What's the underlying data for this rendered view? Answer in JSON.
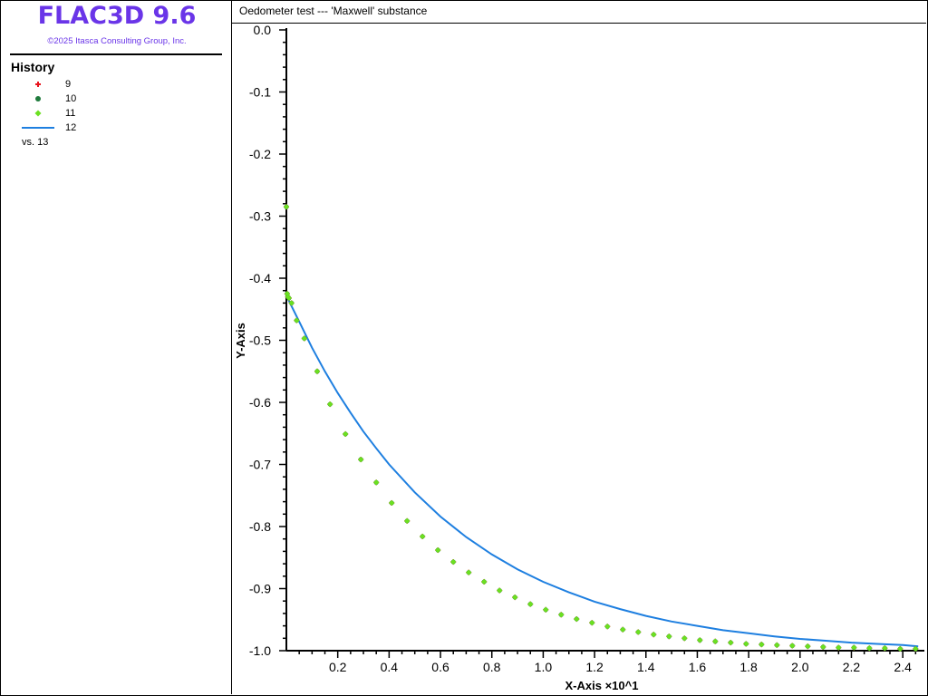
{
  "app": {
    "title": "FLAC3D 9.6",
    "copyright": "©2025 Itasca Consulting Group, Inc."
  },
  "legend": {
    "title": "History",
    "items": [
      {
        "label": "9",
        "symbol": "cross-icon",
        "color": "#e8141e"
      },
      {
        "label": "10",
        "symbol": "circle-icon",
        "color": "#1f7a3c"
      },
      {
        "label": "11",
        "symbol": "diamond-icon",
        "color": "#6be021"
      },
      {
        "label": "12",
        "symbol": "line-icon",
        "color": "#1e7fe0"
      }
    ],
    "vs_label": "vs. 13"
  },
  "plot": {
    "title": "Oedometer test --- 'Maxwell' substance"
  },
  "chart_data": {
    "type": "scatter",
    "title": "Oedometer test --- 'Maxwell' substance",
    "xlabel": "X-Axis ×10^1",
    "ylabel": "Y-Axis",
    "xlim": [
      0.0,
      2.47
    ],
    "ylim": [
      -1.0,
      0.0
    ],
    "xticks": [
      "0.2",
      "0.4",
      "0.6",
      "0.8",
      "1.0",
      "1.2",
      "1.4",
      "1.6",
      "1.8",
      "2.0",
      "2.2",
      "2.4"
    ],
    "yticks": [
      "0.0",
      "-0.1",
      "-0.2",
      "-0.3",
      "-0.4",
      "-0.5",
      "-0.6",
      "-0.7",
      "-0.8",
      "-0.9",
      "-1.0"
    ],
    "grid": false,
    "legend_position": "left-panel",
    "series": [
      {
        "name": "12",
        "type": "line",
        "color": "#1e7fe0",
        "x": [
          0.0,
          0.02,
          0.05,
          0.1,
          0.15,
          0.2,
          0.25,
          0.3,
          0.35,
          0.4,
          0.5,
          0.6,
          0.7,
          0.8,
          0.9,
          1.0,
          1.1,
          1.2,
          1.3,
          1.4,
          1.5,
          1.6,
          1.7,
          1.8,
          1.9,
          2.0,
          2.1,
          2.2,
          2.3,
          2.4,
          2.46
        ],
        "y": [
          -0.428,
          -0.445,
          -0.47,
          -0.512,
          -0.55,
          -0.585,
          -0.617,
          -0.647,
          -0.674,
          -0.7,
          -0.745,
          -0.784,
          -0.817,
          -0.845,
          -0.869,
          -0.889,
          -0.906,
          -0.921,
          -0.933,
          -0.944,
          -0.953,
          -0.96,
          -0.967,
          -0.972,
          -0.977,
          -0.981,
          -0.984,
          -0.987,
          -0.989,
          -0.991,
          -0.993
        ]
      },
      {
        "name": "9",
        "type": "scatter",
        "marker": "cross",
        "color": "#e8141e",
        "x": [
          0.0,
          0.003,
          0.006,
          0.01,
          0.02,
          0.04,
          0.07,
          0.12,
          0.17,
          0.23,
          0.29,
          0.35,
          0.41,
          0.47,
          0.53,
          0.59,
          0.65,
          0.71,
          0.77,
          0.83,
          0.89,
          0.95,
          1.01,
          1.07,
          1.13,
          1.19,
          1.25,
          1.31,
          1.37,
          1.43,
          1.49,
          1.55,
          1.61,
          1.67,
          1.73,
          1.79,
          1.85,
          1.91,
          1.97,
          2.03,
          2.09,
          2.15,
          2.21,
          2.27,
          2.33,
          2.39,
          2.45
        ],
        "y": [
          -0.285,
          -0.425,
          -0.43,
          -0.432,
          -0.44,
          -0.468,
          -0.497,
          -0.55,
          -0.603,
          -0.651,
          -0.692,
          -0.729,
          -0.762,
          -0.791,
          -0.816,
          -0.838,
          -0.857,
          -0.874,
          -0.889,
          -0.903,
          -0.914,
          -0.925,
          -0.934,
          -0.942,
          -0.949,
          -0.955,
          -0.961,
          -0.966,
          -0.97,
          -0.974,
          -0.977,
          -0.98,
          -0.983,
          -0.985,
          -0.987,
          -0.989,
          -0.99,
          -0.991,
          -0.992,
          -0.993,
          -0.994,
          -0.995,
          -0.995,
          -0.996,
          -0.996,
          -0.997,
          -0.997
        ]
      },
      {
        "name": "10",
        "type": "scatter",
        "marker": "circle",
        "color": "#1f7a3c",
        "x": [
          0.0,
          0.003,
          0.006,
          0.01,
          0.02,
          0.04,
          0.07,
          0.12,
          0.17,
          0.23,
          0.29,
          0.35,
          0.41,
          0.47,
          0.53,
          0.59,
          0.65,
          0.71,
          0.77,
          0.83,
          0.89,
          0.95,
          1.01,
          1.07,
          1.13,
          1.19,
          1.25,
          1.31,
          1.37,
          1.43,
          1.49,
          1.55,
          1.61,
          1.67,
          1.73,
          1.79,
          1.85,
          1.91,
          1.97,
          2.03,
          2.09,
          2.15,
          2.21,
          2.27,
          2.33,
          2.39,
          2.45
        ],
        "y": [
          -0.285,
          -0.425,
          -0.43,
          -0.432,
          -0.44,
          -0.468,
          -0.497,
          -0.55,
          -0.603,
          -0.651,
          -0.692,
          -0.729,
          -0.762,
          -0.791,
          -0.816,
          -0.838,
          -0.857,
          -0.874,
          -0.889,
          -0.903,
          -0.914,
          -0.925,
          -0.934,
          -0.942,
          -0.949,
          -0.955,
          -0.961,
          -0.966,
          -0.97,
          -0.974,
          -0.977,
          -0.98,
          -0.983,
          -0.985,
          -0.987,
          -0.989,
          -0.99,
          -0.991,
          -0.992,
          -0.993,
          -0.994,
          -0.995,
          -0.995,
          -0.996,
          -0.996,
          -0.997,
          -0.997
        ]
      },
      {
        "name": "11",
        "type": "scatter",
        "marker": "diamond",
        "color": "#6be021",
        "x": [
          0.0,
          0.003,
          0.006,
          0.01,
          0.02,
          0.04,
          0.07,
          0.12,
          0.17,
          0.23,
          0.29,
          0.35,
          0.41,
          0.47,
          0.53,
          0.59,
          0.65,
          0.71,
          0.77,
          0.83,
          0.89,
          0.95,
          1.01,
          1.07,
          1.13,
          1.19,
          1.25,
          1.31,
          1.37,
          1.43,
          1.49,
          1.55,
          1.61,
          1.67,
          1.73,
          1.79,
          1.85,
          1.91,
          1.97,
          2.03,
          2.09,
          2.15,
          2.21,
          2.27,
          2.33,
          2.39,
          2.45
        ],
        "y": [
          -0.285,
          -0.425,
          -0.43,
          -0.432,
          -0.44,
          -0.468,
          -0.497,
          -0.55,
          -0.603,
          -0.651,
          -0.692,
          -0.729,
          -0.762,
          -0.791,
          -0.816,
          -0.838,
          -0.857,
          -0.874,
          -0.889,
          -0.903,
          -0.914,
          -0.925,
          -0.934,
          -0.942,
          -0.949,
          -0.955,
          -0.961,
          -0.966,
          -0.97,
          -0.974,
          -0.977,
          -0.98,
          -0.983,
          -0.985,
          -0.987,
          -0.989,
          -0.99,
          -0.991,
          -0.992,
          -0.993,
          -0.994,
          -0.995,
          -0.995,
          -0.996,
          -0.996,
          -0.997,
          -0.997
        ]
      }
    ]
  }
}
